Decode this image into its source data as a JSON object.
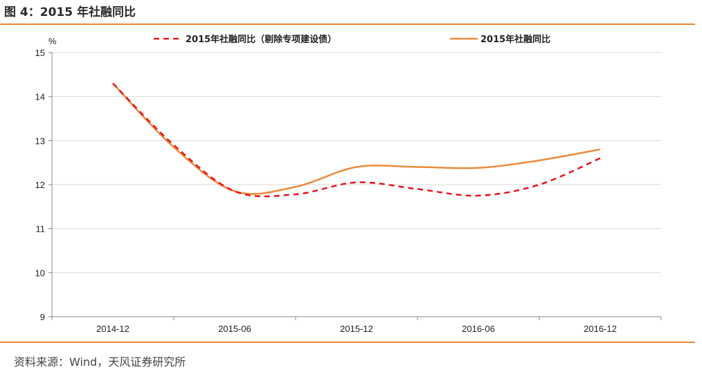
{
  "header": {
    "title": "图 4：2015 年社融同比"
  },
  "footer": {
    "source": "资料来源：Wind，天风证券研究所"
  },
  "chart_data": {
    "type": "line",
    "title": "",
    "xlabel": "",
    "ylabel": "%",
    "ylim": [
      9,
      15
    ],
    "yticks": [
      "15",
      "14",
      "13",
      "12",
      "11",
      "10",
      "9"
    ],
    "categories": [
      "2014-12",
      "2015-06",
      "2015-12",
      "2016-06",
      "2016-12"
    ],
    "grid": true,
    "legend_position": "top",
    "series": [
      {
        "name": "2015年社融同比（剔除专项建设债）",
        "style": "dashed",
        "color": "#e8141c",
        "x": [
          0,
          0.5,
          1,
          1.5,
          2,
          2.5,
          3,
          3.5,
          4
        ],
        "values": [
          14.3,
          12.9,
          11.85,
          11.78,
          12.05,
          11.9,
          11.75,
          12.0,
          12.6
        ]
      },
      {
        "name": "2015年社融同比",
        "style": "solid",
        "color": "#ea8a3a",
        "x": [
          0,
          0.5,
          1,
          1.5,
          2,
          2.5,
          3,
          3.5,
          4
        ],
        "values": [
          14.3,
          12.85,
          11.85,
          11.95,
          12.4,
          12.4,
          12.38,
          12.55,
          12.8
        ]
      }
    ]
  }
}
